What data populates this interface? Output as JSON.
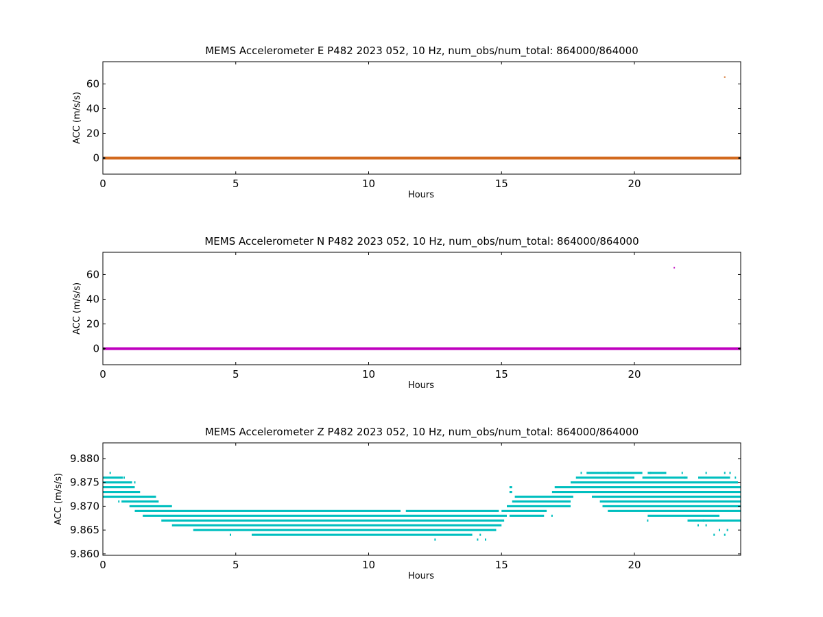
{
  "figure": {
    "background": "#ffffff"
  },
  "chart_data": [
    {
      "type": "scatter",
      "title": "MEMS Accelerometer E P482 2023 052, 10 Hz, num_obs/num_total: 864000/864000",
      "xlabel": "Hours",
      "ylabel": "ACC (m/s/s)",
      "xlim": [
        0,
        24
      ],
      "ylim": [
        -13,
        78
      ],
      "xticks": [
        0,
        5,
        10,
        15,
        20
      ],
      "yticks": [
        0,
        20,
        40,
        60
      ],
      "tick_decimals": 0,
      "grid": false,
      "color": "#d2691e",
      "baseline": {
        "value": 0.0,
        "from": 0,
        "to": 24
      },
      "outliers": [
        {
          "x": 23.4,
          "y": 65.5
        }
      ]
    },
    {
      "type": "scatter",
      "title": "MEMS Accelerometer N P482 2023 052, 10 Hz, num_obs/num_total: 864000/864000",
      "xlabel": "Hours",
      "ylabel": "ACC (m/s/s)",
      "xlim": [
        0,
        24
      ],
      "ylim": [
        -13,
        78
      ],
      "xticks": [
        0,
        5,
        10,
        15,
        20
      ],
      "yticks": [
        0,
        20,
        40,
        60
      ],
      "tick_decimals": 0,
      "grid": false,
      "color": "#bf00bf",
      "baseline": {
        "value": 0.0,
        "from": 0,
        "to": 24
      },
      "outliers": [
        {
          "x": 21.5,
          "y": 65.5
        }
      ]
    },
    {
      "type": "scatter",
      "title": "MEMS Accelerometer Z P482 2023 052, 10 Hz, num_obs/num_total: 864000/864000",
      "xlabel": "Hours",
      "ylabel": "ACC (m/s/s)",
      "xlim": [
        0,
        24
      ],
      "ylim": [
        9.8597,
        9.8833
      ],
      "xticks": [
        0,
        5,
        10,
        15,
        20
      ],
      "yticks": [
        9.86,
        9.865,
        9.87,
        9.875,
        9.88
      ],
      "tick_decimals": 3,
      "grid": false,
      "color": "#00bfbf",
      "quantum": 0.001,
      "levels": [
        {
          "y": 9.877,
          "segments": [
            [
              0.25,
              0.3
            ],
            [
              18.2,
              20.3
            ],
            [
              20.5,
              21.2
            ]
          ],
          "dots": [
            18.0,
            19.0,
            19.4,
            20.6,
            21.8,
            22.7,
            23.4,
            23.6
          ]
        },
        {
          "y": 9.876,
          "segments": [
            [
              0.0,
              0.75
            ],
            [
              17.8,
              20.0
            ],
            [
              20.3,
              22.0
            ],
            [
              22.4,
              23.6
            ]
          ],
          "dots": [
            0.8,
            21.9,
            23.8
          ]
        },
        {
          "y": 9.875,
          "segments": [
            [
              0.0,
              1.1
            ],
            [
              17.6,
              23.9
            ]
          ],
          "dots": [
            1.2
          ]
        },
        {
          "y": 9.874,
          "segments": [
            [
              0.0,
              1.2
            ],
            [
              15.3,
              15.4
            ],
            [
              17.0,
              24.0
            ]
          ],
          "dots": []
        },
        {
          "y": 9.873,
          "segments": [
            [
              0.0,
              1.4
            ],
            [
              15.3,
              15.4
            ],
            [
              16.9,
              24.0
            ]
          ],
          "dots": []
        },
        {
          "y": 9.872,
          "segments": [
            [
              0.0,
              2.0
            ],
            [
              15.5,
              17.7
            ],
            [
              18.4,
              24.0
            ]
          ],
          "dots": []
        },
        {
          "y": 9.871,
          "segments": [
            [
              0.7,
              2.1
            ],
            [
              15.4,
              17.6
            ],
            [
              18.7,
              24.0
            ]
          ],
          "dots": [
            0.6
          ]
        },
        {
          "y": 9.87,
          "segments": [
            [
              1.0,
              2.6
            ],
            [
              15.2,
              17.6
            ],
            [
              18.8,
              24.0
            ]
          ],
          "dots": []
        },
        {
          "y": 9.869,
          "segments": [
            [
              1.2,
              11.2
            ],
            [
              11.4,
              14.9
            ],
            [
              15.0,
              16.7
            ],
            [
              19.0,
              24.0
            ]
          ],
          "dots": []
        },
        {
          "y": 9.868,
          "segments": [
            [
              1.5,
              15.2
            ],
            [
              15.3,
              16.6
            ],
            [
              20.5,
              23.2
            ]
          ],
          "dots": [
            16.9
          ]
        },
        {
          "y": 9.867,
          "segments": [
            [
              2.2,
              15.1
            ],
            [
              22.0,
              24.0
            ]
          ],
          "dots": [
            20.5,
            22.6
          ]
        },
        {
          "y": 9.866,
          "segments": [
            [
              2.6,
              15.0
            ]
          ],
          "dots": [
            22.4,
            22.7
          ]
        },
        {
          "y": 9.865,
          "segments": [
            [
              3.4,
              14.8
            ]
          ],
          "dots": [
            23.2,
            23.5
          ]
        },
        {
          "y": 9.864,
          "segments": [
            [
              5.6,
              13.9
            ]
          ],
          "dots": [
            4.8,
            14.2,
            23.0,
            23.4
          ]
        },
        {
          "y": 9.863,
          "segments": [],
          "dots": [
            12.5,
            14.1,
            14.4
          ]
        }
      ]
    }
  ]
}
